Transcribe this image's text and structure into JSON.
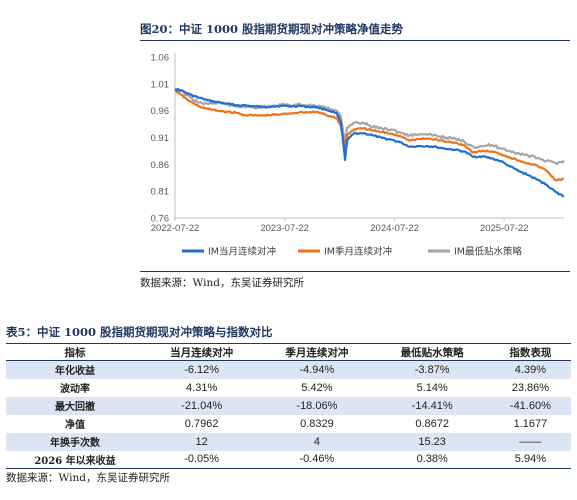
{
  "figure": {
    "title": "图20：中证 1000 股指期货期现对冲策略净值走势",
    "source": "数据来源：Wind，东吴证券研究所"
  },
  "chart_data": {
    "type": "line",
    "title": "图20：中证 1000 股指期货期现对冲策略净值走势",
    "xlabel": "",
    "ylabel": "",
    "ylim": [
      0.76,
      1.06
    ],
    "yticks": [
      "0.76",
      "0.81",
      "0.86",
      "0.91",
      "0.96",
      "1.01",
      "1.06"
    ],
    "xlim": [
      "2022-07-22",
      "2026-02-06"
    ],
    "xticks": [
      "2022-07-22",
      "2023-07-22",
      "2024-07-22",
      "2025-07-22"
    ],
    "grid": false,
    "legend": "bottom",
    "series": [
      {
        "name": "IM当月连续对冲",
        "color": "#1f6fd1",
        "x": [
          "2022-07-22",
          "2022-08-10",
          "2022-09-10",
          "2022-10-10",
          "2022-11-10",
          "2022-12-10",
          "2023-01-10",
          "2023-02-10",
          "2023-03-10",
          "2023-04-10",
          "2023-05-10",
          "2023-06-10",
          "2023-07-10",
          "2023-08-10",
          "2023-09-10",
          "2023-10-10",
          "2023-11-10",
          "2023-12-10",
          "2024-01-10",
          "2024-01-25",
          "2024-02-05",
          "2024-02-08",
          "2024-02-15",
          "2024-03-10",
          "2024-04-10",
          "2024-05-10",
          "2024-06-10",
          "2024-07-10",
          "2024-08-10",
          "2024-09-10",
          "2024-10-10",
          "2024-11-10",
          "2024-12-10",
          "2025-01-10",
          "2025-02-10",
          "2025-03-10",
          "2025-04-10",
          "2025-05-10",
          "2025-06-10",
          "2025-07-10",
          "2025-08-10",
          "2025-09-10",
          "2025-10-10",
          "2025-11-10",
          "2025-12-10",
          "2026-01-10",
          "2026-02-06"
        ],
        "values": [
          1.0,
          0.998,
          0.99,
          0.984,
          0.979,
          0.976,
          0.973,
          0.97,
          0.97,
          0.968,
          0.967,
          0.968,
          0.969,
          0.968,
          0.969,
          0.967,
          0.966,
          0.961,
          0.956,
          0.94,
          0.885,
          0.868,
          0.905,
          0.918,
          0.918,
          0.914,
          0.909,
          0.906,
          0.901,
          0.893,
          0.894,
          0.894,
          0.892,
          0.889,
          0.887,
          0.884,
          0.874,
          0.875,
          0.871,
          0.866,
          0.856,
          0.847,
          0.84,
          0.831,
          0.822,
          0.808,
          0.8
        ]
      },
      {
        "name": "IM季月连续对冲",
        "color": "#f0701e",
        "x": [
          "2022-07-22",
          "2022-08-10",
          "2022-09-10",
          "2022-10-10",
          "2022-11-10",
          "2022-12-10",
          "2023-01-10",
          "2023-02-10",
          "2023-03-10",
          "2023-04-10",
          "2023-05-10",
          "2023-06-10",
          "2023-07-10",
          "2023-08-10",
          "2023-09-10",
          "2023-10-10",
          "2023-11-10",
          "2023-12-10",
          "2024-01-10",
          "2024-01-25",
          "2024-02-05",
          "2024-02-08",
          "2024-02-15",
          "2024-03-10",
          "2024-04-10",
          "2024-05-10",
          "2024-06-10",
          "2024-07-10",
          "2024-08-10",
          "2024-09-10",
          "2024-10-10",
          "2024-11-10",
          "2024-12-10",
          "2025-01-10",
          "2025-02-10",
          "2025-03-10",
          "2025-04-10",
          "2025-05-10",
          "2025-06-10",
          "2025-07-10",
          "2025-08-10",
          "2025-09-10",
          "2025-10-10",
          "2025-11-10",
          "2025-12-10",
          "2026-01-10",
          "2026-02-06"
        ],
        "values": [
          0.998,
          0.99,
          0.977,
          0.968,
          0.963,
          0.96,
          0.958,
          0.956,
          0.952,
          0.951,
          0.951,
          0.952,
          0.953,
          0.955,
          0.957,
          0.957,
          0.958,
          0.951,
          0.946,
          0.932,
          0.9,
          0.893,
          0.915,
          0.925,
          0.927,
          0.923,
          0.92,
          0.917,
          0.913,
          0.904,
          0.907,
          0.908,
          0.906,
          0.902,
          0.9,
          0.896,
          0.882,
          0.885,
          0.884,
          0.879,
          0.873,
          0.867,
          0.862,
          0.857,
          0.848,
          0.83,
          0.833
        ]
      },
      {
        "name": "IM最低贴水策略",
        "color": "#a6a6a6",
        "x": [
          "2022-07-22",
          "2022-08-10",
          "2022-09-10",
          "2022-10-10",
          "2022-11-10",
          "2022-12-10",
          "2023-01-10",
          "2023-02-10",
          "2023-03-10",
          "2023-04-10",
          "2023-05-10",
          "2023-06-10",
          "2023-07-10",
          "2023-08-10",
          "2023-09-10",
          "2023-10-10",
          "2023-11-10",
          "2023-12-10",
          "2024-01-10",
          "2024-01-25",
          "2024-02-05",
          "2024-02-08",
          "2024-02-15",
          "2024-03-10",
          "2024-04-10",
          "2024-05-10",
          "2024-06-10",
          "2024-07-10",
          "2024-08-10",
          "2024-09-10",
          "2024-10-10",
          "2024-11-10",
          "2024-12-10",
          "2025-01-10",
          "2025-02-10",
          "2025-03-10",
          "2025-04-10",
          "2025-05-10",
          "2025-06-10",
          "2025-07-10",
          "2025-08-10",
          "2025-09-10",
          "2025-10-10",
          "2025-11-10",
          "2025-12-10",
          "2026-01-10",
          "2026-02-06"
        ],
        "values": [
          1.0,
          0.997,
          0.985,
          0.975,
          0.972,
          0.975,
          0.972,
          0.968,
          0.968,
          0.966,
          0.966,
          0.968,
          0.971,
          0.97,
          0.972,
          0.97,
          0.968,
          0.964,
          0.96,
          0.95,
          0.91,
          0.9,
          0.928,
          0.937,
          0.937,
          0.93,
          0.927,
          0.925,
          0.919,
          0.914,
          0.916,
          0.915,
          0.913,
          0.91,
          0.907,
          0.903,
          0.893,
          0.894,
          0.896,
          0.89,
          0.885,
          0.88,
          0.876,
          0.872,
          0.866,
          0.862,
          0.867
        ]
      }
    ]
  },
  "table": {
    "title": "表5：中证 1000 股指期货期现对冲策略与指数对比",
    "headers": [
      "指标",
      "当月连续对冲",
      "季月连续对冲",
      "最低贴水策略",
      "指数表现"
    ],
    "rows": [
      [
        "年化收益",
        "-6.12%",
        "-4.94%",
        "-3.87%",
        "4.39%"
      ],
      [
        "波动率",
        "4.31%",
        "5.42%",
        "5.14%",
        "23.86%"
      ],
      [
        "最大回撤",
        "-21.04%",
        "-18.06%",
        "-14.41%",
        "-41.60%"
      ],
      [
        "净值",
        "0.7962",
        "0.8329",
        "0.8672",
        "1.1677"
      ],
      [
        "年换手次数",
        "12",
        "4",
        "15.23",
        "——"
      ],
      [
        "2026 年以来收益",
        "-0.05%",
        "-0.46%",
        "0.38%",
        "5.94%"
      ]
    ],
    "source": "数据来源：Wind，东吴证券研究所"
  }
}
